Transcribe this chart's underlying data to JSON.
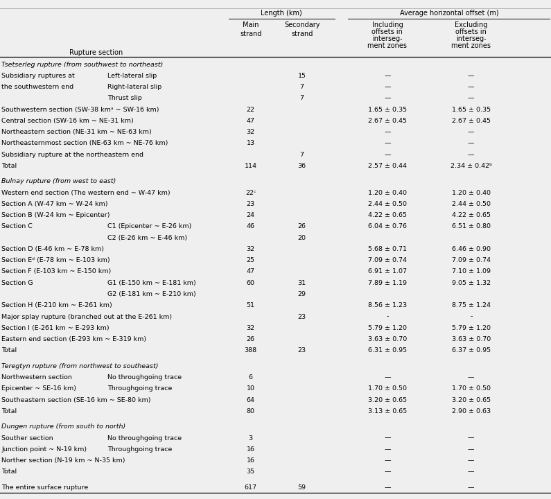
{
  "bg_color": "#f0eff0",
  "fig_width": 7.95,
  "fig_height": 7.2,
  "body_fontsize": 6.8,
  "header_fontsize": 7.0,
  "col_rs1": 0.003,
  "col_rs1b": 0.195,
  "col_main": 0.455,
  "col_sec": 0.548,
  "col_incl": 0.703,
  "col_excl": 0.855,
  "rows": [
    {
      "type": "section_header",
      "text": "Tsetserleg rupture (from southwest to northeast)"
    },
    {
      "type": "data",
      "col1": "Subsidiary ruptures at",
      "col1b": "Left-lateral slip",
      "main": "",
      "sec": "15",
      "incl": "—",
      "excl": "—"
    },
    {
      "type": "data",
      "col1": "the southwestern end",
      "col1b": "Right-lateral slip",
      "main": "",
      "sec": "7",
      "incl": "—",
      "excl": "—"
    },
    {
      "type": "data",
      "col1": "",
      "col1b": "Thrust slip",
      "main": "",
      "sec": "7",
      "incl": "—",
      "excl": "—"
    },
    {
      "type": "data",
      "col1": "Southwestern section (SW-38 kmᵃ ~ SW-16 km)",
      "col1b": "",
      "main": "22",
      "sec": "",
      "incl": "1.65 ± 0.35",
      "excl": "1.65 ± 0.35"
    },
    {
      "type": "data",
      "col1": "Central section (SW-16 km ~ NE-31 km)",
      "col1b": "",
      "main": "47",
      "sec": "",
      "incl": "2.67 ± 0.45",
      "excl": "2.67 ± 0.45"
    },
    {
      "type": "data",
      "col1": "Northeastern section (NE-31 km ~ NE-63 km)",
      "col1b": "",
      "main": "32",
      "sec": "",
      "incl": "—",
      "excl": "—"
    },
    {
      "type": "data",
      "col1": "Northeasternmost section (NE-63 km ~ NE-76 km)",
      "col1b": "",
      "main": "13",
      "sec": "",
      "incl": "—",
      "excl": "—"
    },
    {
      "type": "data",
      "col1": "Subsidiary rupture at the northeastern end",
      "col1b": "",
      "main": "",
      "sec": "7",
      "incl": "—",
      "excl": "—"
    },
    {
      "type": "total",
      "col1": "Total",
      "col1b": "",
      "main": "114",
      "sec": "36",
      "incl": "2.57 ± 0.44",
      "excl": "2.34 ± 0.42ᵇ"
    },
    {
      "type": "blank"
    },
    {
      "type": "section_header",
      "text": "Bulnay rupture (from west to east)"
    },
    {
      "type": "data",
      "col1": "Western end section (The western end ~ W-47 km)",
      "col1b": "",
      "main": "22ᶜ",
      "sec": "",
      "incl": "1.20 ± 0.40",
      "excl": "1.20 ± 0.40"
    },
    {
      "type": "data",
      "col1": "Section A (W-47 km ~ W-24 km)",
      "col1b": "",
      "main": "23",
      "sec": "",
      "incl": "2.44 ± 0.50",
      "excl": "2.44 ± 0.50"
    },
    {
      "type": "data",
      "col1": "Section B (W-24 km ~ Epicenter)",
      "col1b": "",
      "main": "24",
      "sec": "",
      "incl": "4.22 ± 0.65",
      "excl": "4.22 ± 0.65"
    },
    {
      "type": "data",
      "col1": "Section C",
      "col1b": "C1 (Epicenter ~ E-26 km)",
      "main": "46",
      "sec": "26",
      "incl": "6.04 ± 0.76",
      "excl": "6.51 ± 0.80"
    },
    {
      "type": "data",
      "col1": "",
      "col1b": "C2 (E-26 km ~ E-46 km)",
      "main": "",
      "sec": "20",
      "incl": "",
      "excl": ""
    },
    {
      "type": "data",
      "col1": "Section D (E-46 km ~ E-78 km)",
      "col1b": "",
      "main": "32",
      "sec": "",
      "incl": "5.68 ± 0.71",
      "excl": "6.46 ± 0.90"
    },
    {
      "type": "data",
      "col1": "Section Eᵈ (E-78 km ~ E-103 km)",
      "col1b": "",
      "main": "25",
      "sec": "",
      "incl": "7.09 ± 0.74",
      "excl": "7.09 ± 0.74"
    },
    {
      "type": "data",
      "col1": "Section F (E-103 km ~ E-150 km)",
      "col1b": "",
      "main": "47",
      "sec": "",
      "incl": "6.91 ± 1.07",
      "excl": "7.10 ± 1.09"
    },
    {
      "type": "data",
      "col1": "Section G",
      "col1b": "G1 (E-150 km ~ E-181 km)",
      "main": "60",
      "sec": "31",
      "incl": "7.89 ± 1.19",
      "excl": "9.05 ± 1.32"
    },
    {
      "type": "data",
      "col1": "",
      "col1b": "G2 (E-181 km ~ E-210 km)",
      "main": "",
      "sec": "29",
      "incl": "",
      "excl": ""
    },
    {
      "type": "data",
      "col1": "Section H (E-210 km ~ E-261 km)",
      "col1b": "",
      "main": "51",
      "sec": "",
      "incl": "8.56 ± 1.23",
      "excl": "8.75 ± 1.24"
    },
    {
      "type": "data",
      "col1": "Major splay rupture (branched out at the E-261 km)",
      "col1b": "",
      "main": "",
      "sec": "23",
      "incl": "-",
      "excl": "-"
    },
    {
      "type": "data",
      "col1": "Section I (E-261 km ~ E-293 km)",
      "col1b": "",
      "main": "32",
      "sec": "",
      "incl": "5.79 ± 1.20",
      "excl": "5.79 ± 1.20"
    },
    {
      "type": "data",
      "col1": "Eastern end section (E-293 km ~ E-319 km)",
      "col1b": "",
      "main": "26",
      "sec": "",
      "incl": "3.63 ± 0.70",
      "excl": "3.63 ± 0.70"
    },
    {
      "type": "total",
      "col1": "Total",
      "col1b": "",
      "main": "388",
      "sec": "23",
      "incl": "6.31 ± 0.95",
      "excl": "6.37 ± 0.95"
    },
    {
      "type": "blank"
    },
    {
      "type": "section_header",
      "text": "Teregtyn rupture (from northwest to southeast)"
    },
    {
      "type": "data",
      "col1": "Northwestern section",
      "col1b": "No throughgoing trace",
      "main": "6",
      "sec": "",
      "incl": "—",
      "excl": "—"
    },
    {
      "type": "data",
      "col1": "Epicenter ~ SE-16 km)",
      "col1b": "Throughgoing trace",
      "main": "10",
      "sec": "",
      "incl": "1.70 ± 0.50",
      "excl": "1.70 ± 0.50"
    },
    {
      "type": "data",
      "col1": "Southeastern section (SE-16 km ~ SE-80 km)",
      "col1b": "",
      "main": "64",
      "sec": "",
      "incl": "3.20 ± 0.65",
      "excl": "3.20 ± 0.65"
    },
    {
      "type": "total",
      "col1": "Total",
      "col1b": "",
      "main": "80",
      "sec": "",
      "incl": "3.13 ± 0.65",
      "excl": "2.90 ± 0.63"
    },
    {
      "type": "blank"
    },
    {
      "type": "section_header",
      "text": "Dungen rupture (from south to north)"
    },
    {
      "type": "data",
      "col1": "Souther section",
      "col1b": "No throughgoing trace",
      "main": "3",
      "sec": "",
      "incl": "—",
      "excl": "—"
    },
    {
      "type": "data",
      "col1": "Junction point ~ N-19 km)",
      "col1b": "Throughgoing trace",
      "main": "16",
      "sec": "",
      "incl": "—",
      "excl": "—"
    },
    {
      "type": "data",
      "col1": "Norther section (N-19 km ~ N-35 km)",
      "col1b": "",
      "main": "16",
      "sec": "",
      "incl": "—",
      "excl": "—"
    },
    {
      "type": "total",
      "col1": "Total",
      "col1b": "",
      "main": "35",
      "sec": "",
      "incl": "—",
      "excl": "—"
    },
    {
      "type": "blank"
    },
    {
      "type": "total",
      "col1": "The entire surface rupture",
      "col1b": "",
      "main": "617",
      "sec": "59",
      "incl": "—",
      "excl": "—"
    }
  ]
}
